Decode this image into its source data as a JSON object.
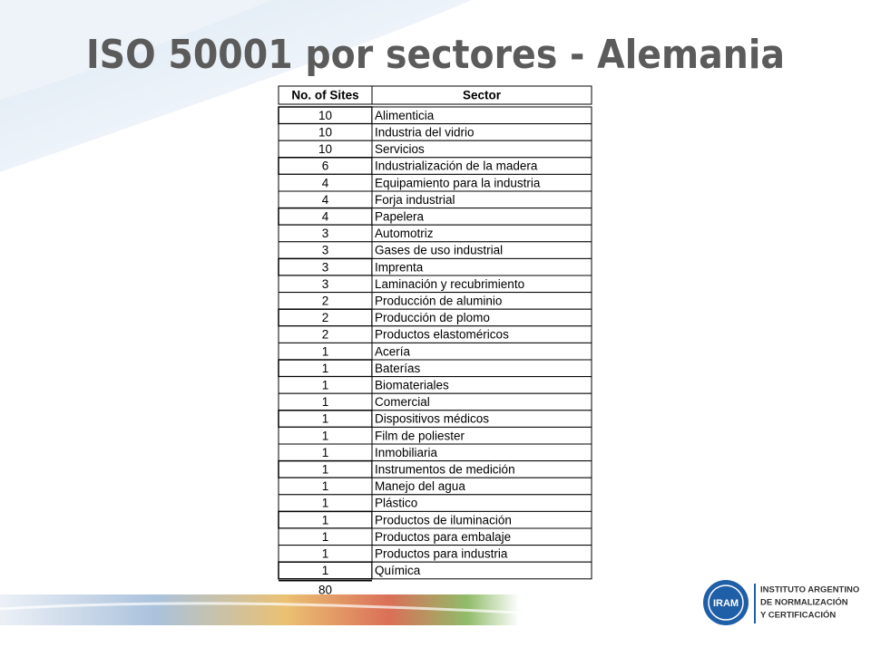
{
  "header": {
    "title": "ISO 50001 por sectores - Alemania"
  },
  "table": {
    "columns": [
      "No. of Sites",
      "Sector"
    ],
    "rows": [
      [
        10,
        "Alimenticia"
      ],
      [
        10,
        "Industria del vidrio"
      ],
      [
        10,
        "Servicios"
      ],
      [
        6,
        "Industrialización de la madera"
      ],
      [
        4,
        "Equipamiento para la industria"
      ],
      [
        4,
        "Forja industrial"
      ],
      [
        4,
        "Papelera"
      ],
      [
        3,
        "Automotriz"
      ],
      [
        3,
        "Gases de uso industrial"
      ],
      [
        3,
        "Imprenta"
      ],
      [
        3,
        "Laminación y recubrimiento"
      ],
      [
        2,
        "Producción de aluminio"
      ],
      [
        2,
        "Producción de plomo"
      ],
      [
        2,
        "Productos elastoméricos"
      ],
      [
        1,
        "Acería"
      ],
      [
        1,
        "Baterías"
      ],
      [
        1,
        "Biomateriales"
      ],
      [
        1,
        "Comercial"
      ],
      [
        1,
        "Dispositivos médicos"
      ],
      [
        1,
        "Film de poliester"
      ],
      [
        1,
        "Inmobiliaria"
      ],
      [
        1,
        "Instrumentos de medición"
      ],
      [
        1,
        "Manejo del agua"
      ],
      [
        1,
        "Plástico"
      ],
      [
        1,
        "Productos de iluminación"
      ],
      [
        1,
        "Productos para embalaje"
      ],
      [
        1,
        "Productos para industria"
      ],
      [
        1,
        "Química"
      ]
    ],
    "total": 80
  },
  "logo": {
    "mark": "IRAM",
    "lines": [
      "INSTITUTO ARGENTINO",
      "DE NORMALIZACIÓN",
      "Y CERTIFICACIÓN"
    ]
  }
}
